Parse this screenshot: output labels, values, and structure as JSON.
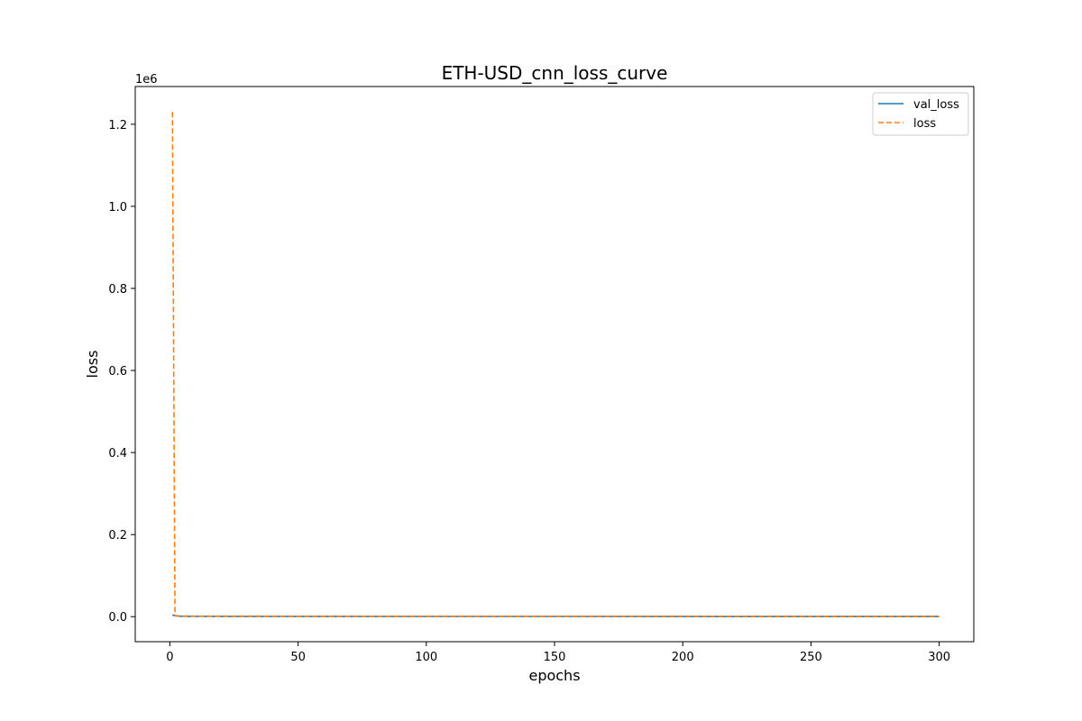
{
  "chart_data": {
    "type": "line",
    "title": "ETH-USD_cnn_loss_curve",
    "xlabel": "epochs",
    "ylabel": "loss",
    "y_offset_label": "1e6",
    "y_multiplier": 1000000,
    "xlim": [
      -13.5,
      313.5
    ],
    "ylim": [
      -61000,
      1292000
    ],
    "x_ticks": [
      0,
      50,
      100,
      150,
      200,
      250,
      300
    ],
    "y_ticks": [
      0,
      200000,
      400000,
      600000,
      800000,
      1000000,
      1200000
    ],
    "y_tick_labels": [
      "0.0",
      "0.2",
      "0.4",
      "0.6",
      "0.8",
      "1.0",
      "1.2"
    ],
    "grid": false,
    "legend_position": "top-right",
    "series": [
      {
        "name": "val_loss",
        "color": "#1f77b4",
        "style": "solid",
        "x": [
          1,
          2,
          3,
          5,
          10,
          50,
          100,
          150,
          200,
          250,
          300
        ],
        "values": [
          4000,
          2500,
          1500,
          1000,
          800,
          600,
          500,
          500,
          400,
          400,
          400
        ]
      },
      {
        "name": "loss",
        "color": "#ff7f0e",
        "style": "dashed",
        "x": [
          1,
          2,
          3,
          5,
          10,
          50,
          100,
          150,
          200,
          250,
          300
        ],
        "values": [
          1230000,
          3000,
          2000,
          1500,
          1200,
          1000,
          900,
          800,
          800,
          700,
          700
        ]
      }
    ]
  }
}
